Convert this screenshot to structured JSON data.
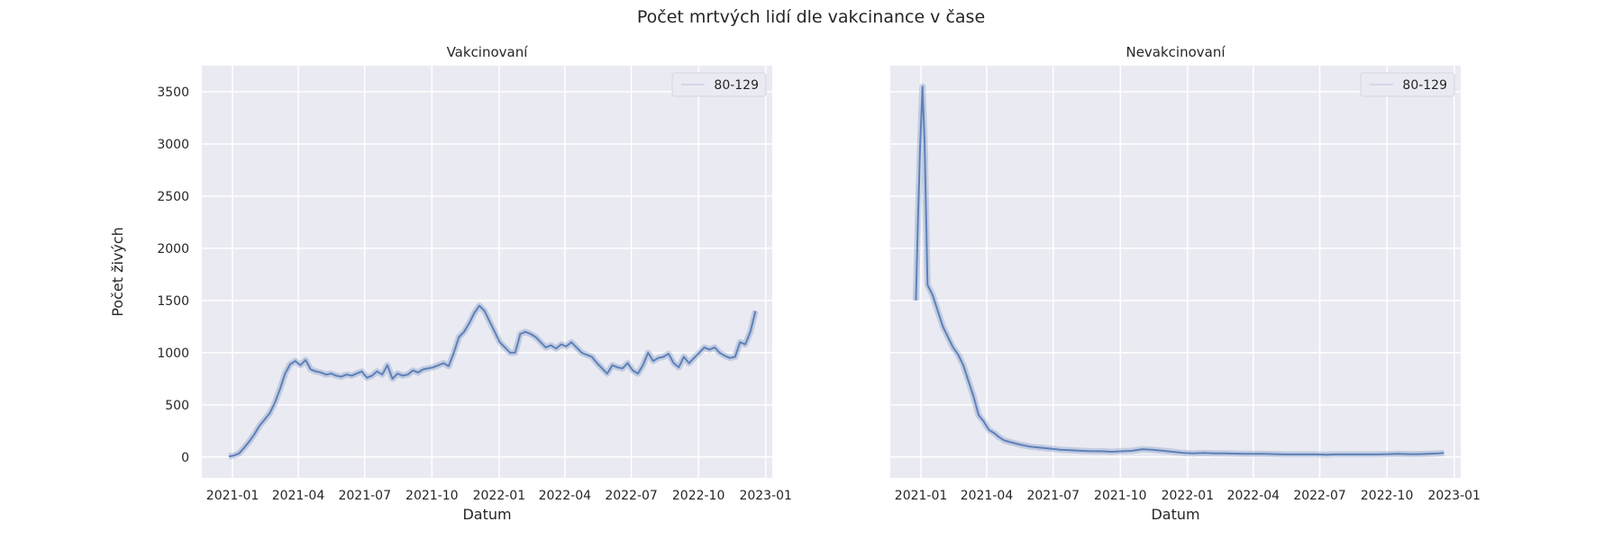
{
  "figure": {
    "suptitle": "Počet mrtvých lidí dle vakcinance v čase"
  },
  "chart_data": [
    {
      "type": "line",
      "title": "Vakcinovaní",
      "xlabel": "Datum",
      "ylabel": "Počet živých",
      "x_tick_labels": [
        "2021-01",
        "2021-04",
        "2021-07",
        "2021-10",
        "2022-01",
        "2022-04",
        "2022-07",
        "2022-10",
        "2023-01"
      ],
      "y_ticks": [
        0,
        500,
        1000,
        1500,
        2000,
        2500,
        3000,
        3500
      ],
      "ylim": [
        -200,
        3750
      ],
      "xlim": [
        "2020-11-20",
        "2023-01-10"
      ],
      "grid": true,
      "legend": {
        "placement": "top-right",
        "entries": [
          "80-129"
        ]
      },
      "series": [
        {
          "name": "80-129",
          "color": "#4c72b0",
          "x": [
            "2020-12-27",
            "2021-01-03",
            "2021-01-10",
            "2021-01-17",
            "2021-01-24",
            "2021-01-31",
            "2021-02-07",
            "2021-02-14",
            "2021-02-21",
            "2021-02-28",
            "2021-03-07",
            "2021-03-14",
            "2021-03-21",
            "2021-03-28",
            "2021-04-04",
            "2021-04-11",
            "2021-04-18",
            "2021-04-25",
            "2021-05-02",
            "2021-05-09",
            "2021-05-16",
            "2021-05-23",
            "2021-05-30",
            "2021-06-06",
            "2021-06-13",
            "2021-06-20",
            "2021-06-27",
            "2021-07-04",
            "2021-07-11",
            "2021-07-18",
            "2021-07-25",
            "2021-08-01",
            "2021-08-08",
            "2021-08-15",
            "2021-08-22",
            "2021-08-29",
            "2021-09-05",
            "2021-09-12",
            "2021-09-19",
            "2021-09-26",
            "2021-10-03",
            "2021-10-10",
            "2021-10-17",
            "2021-10-24",
            "2021-10-31",
            "2021-11-07",
            "2021-11-14",
            "2021-11-21",
            "2021-11-28",
            "2021-12-05",
            "2021-12-12",
            "2021-12-19",
            "2021-12-26",
            "2022-01-02",
            "2022-01-09",
            "2022-01-16",
            "2022-01-23",
            "2022-01-30",
            "2022-02-06",
            "2022-02-13",
            "2022-02-20",
            "2022-02-27",
            "2022-03-06",
            "2022-03-13",
            "2022-03-20",
            "2022-03-27",
            "2022-04-03",
            "2022-04-10",
            "2022-04-17",
            "2022-04-24",
            "2022-05-01",
            "2022-05-08",
            "2022-05-15",
            "2022-05-22",
            "2022-05-29",
            "2022-06-05",
            "2022-06-12",
            "2022-06-19",
            "2022-06-26",
            "2022-07-03",
            "2022-07-10",
            "2022-07-17",
            "2022-07-24",
            "2022-07-31",
            "2022-08-07",
            "2022-08-14",
            "2022-08-21",
            "2022-08-28",
            "2022-09-04",
            "2022-09-11",
            "2022-09-18",
            "2022-09-25",
            "2022-10-02",
            "2022-10-09",
            "2022-10-16",
            "2022-10-23",
            "2022-10-30",
            "2022-11-06",
            "2022-11-13",
            "2022-11-20",
            "2022-11-27",
            "2022-12-04",
            "2022-12-11",
            "2022-12-18"
          ],
          "y": [
            5,
            15,
            35,
            90,
            150,
            220,
            300,
            360,
            420,
            520,
            650,
            800,
            890,
            920,
            880,
            930,
            840,
            820,
            810,
            790,
            800,
            780,
            770,
            790,
            780,
            800,
            820,
            760,
            780,
            820,
            790,
            880,
            750,
            800,
            780,
            790,
            830,
            810,
            840,
            850,
            860,
            880,
            900,
            870,
            1000,
            1150,
            1200,
            1280,
            1380,
            1450,
            1400,
            1300,
            1200,
            1100,
            1050,
            1000,
            1000,
            1180,
            1200,
            1180,
            1150,
            1100,
            1050,
            1070,
            1040,
            1080,
            1060,
            1100,
            1050,
            1000,
            980,
            960,
            900,
            850,
            800,
            880,
            860,
            850,
            900,
            830,
            800,
            880,
            1000,
            920,
            950,
            960,
            990,
            900,
            860,
            960,
            900,
            950,
            1000,
            1050,
            1030,
            1050,
            1000,
            970,
            950,
            960,
            1100,
            1080,
            1200,
            1400
          ]
        }
      ]
    },
    {
      "type": "line",
      "title": "Nevakcinovaní",
      "xlabel": "Datum",
      "ylabel": "",
      "x_tick_labels": [
        "2021-01",
        "2021-04",
        "2021-07",
        "2021-10",
        "2022-01",
        "2022-04",
        "2022-07",
        "2022-10",
        "2023-01"
      ],
      "y_ticks": [
        0,
        500,
        1000,
        1500,
        2000,
        2500,
        3000,
        3500
      ],
      "ylim": [
        -200,
        3750
      ],
      "xlim": [
        "2020-11-20",
        "2023-01-10"
      ],
      "grid": true,
      "legend": {
        "placement": "top-right",
        "entries": [
          "80-129"
        ]
      },
      "series": [
        {
          "name": "80-129",
          "color": "#4c72b0",
          "x": [
            "2020-12-25",
            "2020-12-28",
            "2020-12-31",
            "2021-01-03",
            "2021-01-06",
            "2021-01-10",
            "2021-01-17",
            "2021-01-24",
            "2021-01-31",
            "2021-02-07",
            "2021-02-14",
            "2021-02-21",
            "2021-02-28",
            "2021-03-07",
            "2021-03-14",
            "2021-03-21",
            "2021-03-28",
            "2021-04-04",
            "2021-04-11",
            "2021-04-18",
            "2021-04-25",
            "2021-05-02",
            "2021-05-16",
            "2021-05-30",
            "2021-06-13",
            "2021-06-27",
            "2021-07-11",
            "2021-07-25",
            "2021-08-08",
            "2021-08-22",
            "2021-09-05",
            "2021-09-19",
            "2021-10-03",
            "2021-10-17",
            "2021-10-31",
            "2021-11-14",
            "2021-11-28",
            "2021-12-12",
            "2021-12-26",
            "2022-01-09",
            "2022-01-23",
            "2022-02-06",
            "2022-02-20",
            "2022-03-06",
            "2022-03-20",
            "2022-04-03",
            "2022-04-17",
            "2022-05-01",
            "2022-05-15",
            "2022-05-29",
            "2022-06-12",
            "2022-06-26",
            "2022-07-10",
            "2022-07-24",
            "2022-08-07",
            "2022-08-21",
            "2022-09-04",
            "2022-09-18",
            "2022-10-02",
            "2022-10-16",
            "2022-10-30",
            "2022-11-13",
            "2022-11-27",
            "2022-12-11",
            "2022-12-18"
          ],
          "y": [
            1500,
            2300,
            3000,
            3550,
            3000,
            1650,
            1550,
            1400,
            1250,
            1150,
            1050,
            980,
            880,
            730,
            580,
            400,
            340,
            260,
            230,
            190,
            160,
            145,
            120,
            100,
            90,
            80,
            70,
            65,
            60,
            55,
            55,
            50,
            55,
            60,
            75,
            70,
            60,
            50,
            40,
            35,
            40,
            35,
            35,
            33,
            30,
            30,
            30,
            28,
            25,
            25,
            25,
            25,
            22,
            25,
            25,
            25,
            25,
            25,
            28,
            30,
            28,
            28,
            30,
            35,
            40
          ]
        }
      ]
    }
  ]
}
